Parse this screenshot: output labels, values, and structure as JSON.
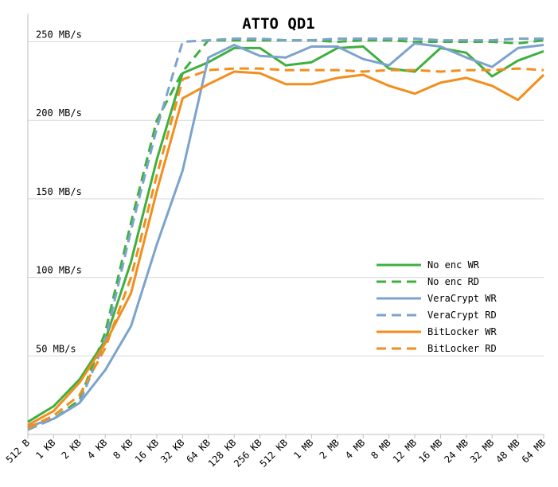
{
  "chart_data": {
    "type": "line",
    "title": "ATTO QD1",
    "xlabel": "",
    "ylabel": "",
    "categories": [
      "512 B",
      "1 KB",
      "2 KB",
      "4 KB",
      "8 KB",
      "16 KB",
      "32 KB",
      "64 KB",
      "128 KB",
      "256 KB",
      "512 KB",
      "1 MB",
      "2 MB",
      "4 MB",
      "8 MB",
      "12 MB",
      "16 MB",
      "24 MB",
      "32 MB",
      "48 MB",
      "64 MB"
    ],
    "y_ticks": [
      {
        "value": 50,
        "label": "50 MB/s"
      },
      {
        "value": 100,
        "label": "100 MB/s"
      },
      {
        "value": 150,
        "label": "150 MB/s"
      },
      {
        "value": 200,
        "label": "200 MB/s"
      },
      {
        "value": 250,
        "label": "250 MB/s"
      }
    ],
    "ylim": [
      0,
      268
    ],
    "grid": "horizontal",
    "legend_position": "right",
    "series": [
      {
        "name": "No enc WR",
        "color": "#3faf3f",
        "dash": false,
        "values": [
          8,
          18,
          35,
          60,
          110,
          175,
          230,
          237,
          246,
          246,
          235,
          237,
          246,
          247,
          233,
          231,
          246,
          243,
          228,
          238,
          244
        ]
      },
      {
        "name": "No enc RD",
        "color": "#3faf3f",
        "dash": true,
        "values": [
          4,
          10,
          22,
          65,
          135,
          200,
          231,
          251,
          251,
          251,
          251,
          251,
          250,
          251,
          251,
          250,
          250,
          250,
          250,
          249,
          251
        ]
      },
      {
        "name": "VeraCrypt WR",
        "color": "#7ba3cc",
        "dash": false,
        "values": [
          5,
          10,
          20,
          41,
          69,
          121,
          168,
          240,
          248,
          241,
          240,
          247,
          247,
          239,
          235,
          249,
          247,
          240,
          234,
          246,
          248
        ]
      },
      {
        "name": "VeraCrypt RD",
        "color": "#7ba3cc",
        "dash": true,
        "values": [
          3,
          10,
          20,
          60,
          130,
          195,
          250,
          251,
          252,
          252,
          251,
          251,
          252,
          252,
          252,
          252,
          251,
          251,
          251,
          252,
          252
        ]
      },
      {
        "name": "BitLocker WR",
        "color": "#f28e1c",
        "dash": false,
        "values": [
          6,
          15,
          33,
          58,
          90,
          155,
          214,
          223,
          231,
          230,
          223,
          223,
          227,
          229,
          222,
          217,
          224,
          227,
          222,
          213,
          229
        ]
      },
      {
        "name": "BitLocker RD",
        "color": "#f28e1c",
        "dash": true,
        "values": [
          4,
          12,
          25,
          55,
          100,
          165,
          226,
          232,
          233,
          233,
          232,
          232,
          232,
          231,
          232,
          232,
          231,
          232,
          232,
          233,
          232
        ]
      }
    ]
  }
}
